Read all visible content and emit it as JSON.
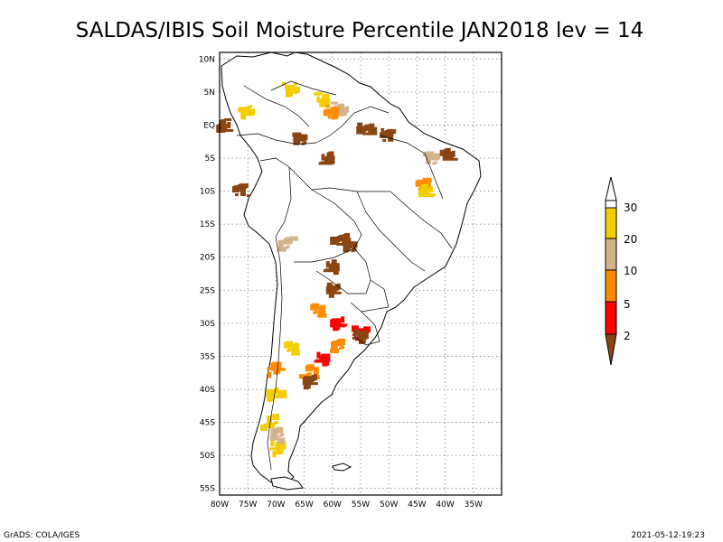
{
  "title": "SALDAS/IBIS Soil Moisture Percentile JAN2018 lev = 14",
  "footer_left": "GrADS: COLA/IGES",
  "footer_right": "2021-05-12-19:23",
  "map": {
    "lon_range": [
      -80,
      -30
    ],
    "lat_range": [
      -56,
      11
    ],
    "lat_ticks": [
      {
        "value": 10,
        "label": "10N"
      },
      {
        "value": 5,
        "label": "5N"
      },
      {
        "value": 0,
        "label": "EQ"
      },
      {
        "value": -5,
        "label": "5S"
      },
      {
        "value": -10,
        "label": "10S"
      },
      {
        "value": -15,
        "label": "15S"
      },
      {
        "value": -20,
        "label": "20S"
      },
      {
        "value": -25,
        "label": "25S"
      },
      {
        "value": -30,
        "label": "30S"
      },
      {
        "value": -35,
        "label": "35S"
      },
      {
        "value": -40,
        "label": "40S"
      },
      {
        "value": -45,
        "label": "45S"
      },
      {
        "value": -50,
        "label": "50S"
      },
      {
        "value": -55,
        "label": "55S"
      }
    ],
    "lon_ticks": [
      {
        "value": -80,
        "label": "80W"
      },
      {
        "value": -75,
        "label": "75W"
      },
      {
        "value": -70,
        "label": "70W"
      },
      {
        "value": -65,
        "label": "65W"
      },
      {
        "value": -60,
        "label": "60W"
      },
      {
        "value": -55,
        "label": "55W"
      },
      {
        "value": -50,
        "label": "50W"
      },
      {
        "value": -45,
        "label": "45W"
      },
      {
        "value": -40,
        "label": "40W"
      },
      {
        "value": -35,
        "label": "35W"
      }
    ],
    "grid": "dotted"
  },
  "legend": {
    "placement": "right",
    "labels": [
      "30",
      "20",
      "10",
      "5",
      "2"
    ],
    "colors": {
      "above_30": "#ffffff",
      "20_30": "#f2cd00",
      "10_20": "#d2b48c",
      "5_10": "#ff8c00",
      "2_5": "#ff0000",
      "below_2": "#8b4513"
    }
  },
  "anomaly_regions": [
    {
      "category": "20_30",
      "lon": -67.5,
      "lat": 5.5
    },
    {
      "category": "20_30",
      "lon": -62,
      "lat": 4
    },
    {
      "category": "20_30",
      "lon": -75,
      "lat": 2
    },
    {
      "category": "10_20",
      "lon": -58.5,
      "lat": 2.5
    },
    {
      "category": "5_10",
      "lon": -60.5,
      "lat": 2
    },
    {
      "category": "below_2",
      "lon": -79,
      "lat": 0
    },
    {
      "category": "below_2",
      "lon": -50,
      "lat": -1.5
    },
    {
      "category": "below_2",
      "lon": -54,
      "lat": -0.5
    },
    {
      "category": "below_2",
      "lon": -66,
      "lat": -2
    },
    {
      "category": "below_2",
      "lon": -61,
      "lat": -5
    },
    {
      "category": "10_20",
      "lon": -42,
      "lat": -5
    },
    {
      "category": "below_2",
      "lon": -39.5,
      "lat": -4.5
    },
    {
      "category": "5_10",
      "lon": -44,
      "lat": -9
    },
    {
      "category": "20_30",
      "lon": -43,
      "lat": -10
    },
    {
      "category": "below_2",
      "lon": -76,
      "lat": -10
    },
    {
      "category": "below_2",
      "lon": -58.5,
      "lat": -17.5
    },
    {
      "category": "below_2",
      "lon": -57,
      "lat": -18.5
    },
    {
      "category": "below_2",
      "lon": -60,
      "lat": -21.5
    },
    {
      "category": "10_20",
      "lon": -68,
      "lat": -18
    },
    {
      "category": "below_2",
      "lon": -60,
      "lat": -25
    },
    {
      "category": "5_10",
      "lon": -62.5,
      "lat": -28
    },
    {
      "category": "2_5",
      "lon": -58.5,
      "lat": -30
    },
    {
      "category": "2_5",
      "lon": -55,
      "lat": -31.5
    },
    {
      "category": "below_2",
      "lon": -55.5,
      "lat": -32
    },
    {
      "category": "5_10",
      "lon": -59,
      "lat": -33.5
    },
    {
      "category": "2_5",
      "lon": -61.5,
      "lat": -35.5
    },
    {
      "category": "5_10",
      "lon": -64,
      "lat": -37.5
    },
    {
      "category": "below_2",
      "lon": -64,
      "lat": -39
    },
    {
      "category": "20_30",
      "lon": -67,
      "lat": -34
    },
    {
      "category": "20_30",
      "lon": -70,
      "lat": -41
    },
    {
      "category": "20_30",
      "lon": -71,
      "lat": -45
    },
    {
      "category": "20_30",
      "lon": -70,
      "lat": -49
    },
    {
      "category": "10_20",
      "lon": -69.5,
      "lat": -47
    },
    {
      "category": "5_10",
      "lon": -70,
      "lat": -37
    }
  ]
}
